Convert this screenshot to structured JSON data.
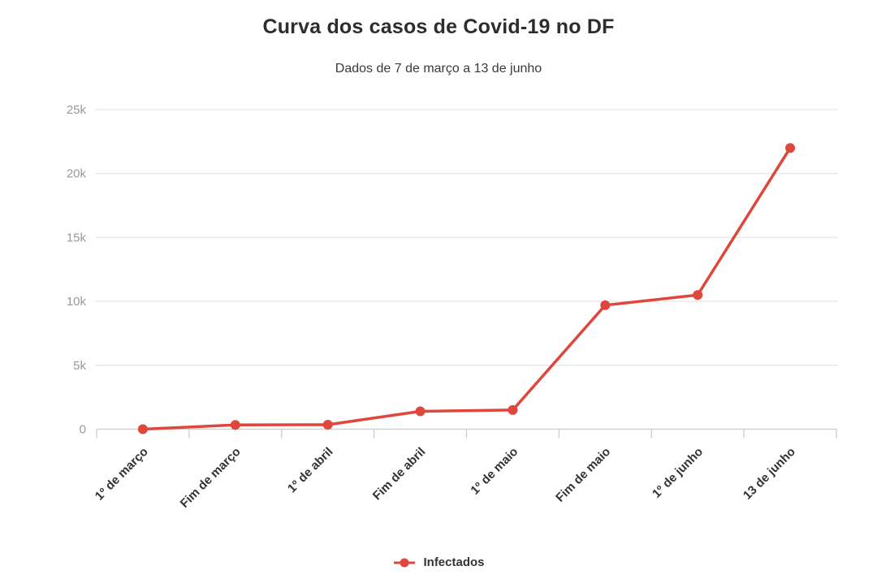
{
  "chart_data": {
    "type": "line",
    "title": "Curva dos casos de Covid-19 no DF",
    "subtitle": "Dados de 7 de março a 13 de junho",
    "categories": [
      "1º de março",
      "Fim de março",
      "1º de abril",
      "Fim de abril",
      "1º de maio",
      "Fim de maio",
      "1º de junho",
      "13 de junho"
    ],
    "series": [
      {
        "name": "Infectados",
        "color": "#e0473c",
        "values": [
          1,
          330,
          350,
          1400,
          1500,
          9700,
          10500,
          22000
        ]
      }
    ],
    "y_ticks": [
      {
        "label": "0",
        "value": 0
      },
      {
        "label": "5k",
        "value": 5000
      },
      {
        "label": "10k",
        "value": 10000
      },
      {
        "label": "15k",
        "value": 15000
      },
      {
        "label": "20k",
        "value": 20000
      },
      {
        "label": "25k",
        "value": 25000
      }
    ],
    "ylim": [
      0,
      25000
    ],
    "xlabel": "",
    "ylabel": "",
    "grid": true,
    "legend_position": "bottom",
    "colors": {
      "grid": "#e7e7e7",
      "axis": "#cccccc",
      "y_label": "#999999",
      "x_label": "#333333",
      "title": "#2d2d2d",
      "subtitle": "#3a3a3a",
      "background": "#ffffff"
    }
  }
}
